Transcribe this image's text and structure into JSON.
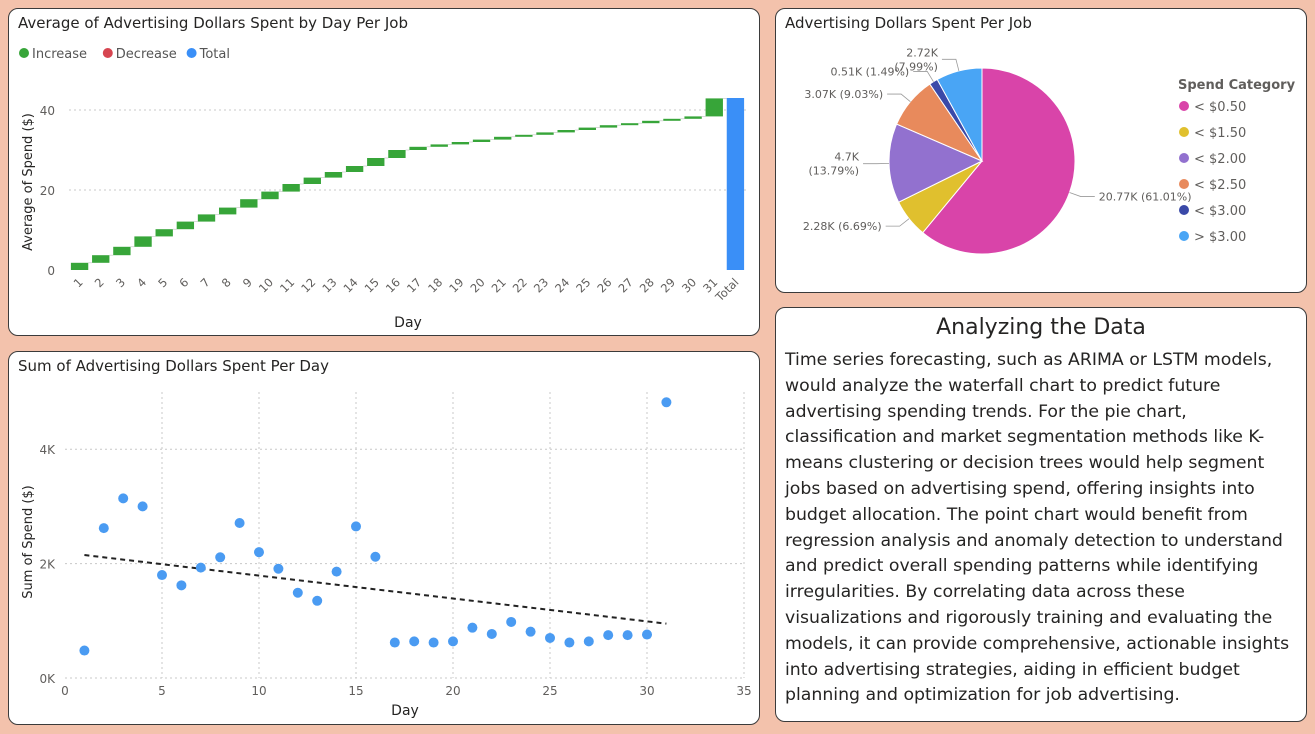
{
  "waterfall": {
    "title": "Average of Advertising Dollars Spent by Day Per Job",
    "legend": [
      {
        "label": "Increase",
        "color": "#37a539"
      },
      {
        "label": "Decrease",
        "color": "#d64550"
      },
      {
        "label": "Total",
        "color": "#3a8ff7"
      }
    ],
    "chart_data": {
      "type": "bar",
      "subtype": "waterfall",
      "categories": [
        "1",
        "2",
        "3",
        "4",
        "5",
        "6",
        "7",
        "8",
        "9",
        "10",
        "11",
        "12",
        "13",
        "14",
        "15",
        "16",
        "17",
        "18",
        "19",
        "20",
        "21",
        "22",
        "23",
        "24",
        "25",
        "26",
        "27",
        "28",
        "29",
        "30",
        "31",
        "Total"
      ],
      "cumulative_end": [
        1.8,
        3.7,
        5.8,
        8.4,
        10.2,
        12.1,
        13.9,
        15.6,
        17.7,
        19.6,
        21.5,
        23.1,
        24.5,
        26.0,
        28.0,
        30.0,
        30.8,
        31.4,
        32.0,
        32.6,
        33.3,
        33.8,
        34.4,
        35.0,
        35.6,
        36.2,
        36.7,
        37.3,
        37.8,
        38.4,
        42.9
      ],
      "total": 43.0,
      "xlabel": "Day",
      "ylabel": "Average of Spend ($)",
      "ylim": [
        0,
        44
      ],
      "yticks": [
        "0",
        "20",
        "40"
      ],
      "grid": "horizontal-dotted",
      "legend_position": "top-left"
    }
  },
  "pie": {
    "title": "Advertising Dollars Spent Per Job",
    "legend_title": "Spend Category",
    "chart_data": {
      "type": "pie",
      "slices": [
        {
          "category": "< $0.50",
          "value": 20.77,
          "label": "20.77K (61.01%)",
          "color": "#d944a9"
        },
        {
          "category": "< $1.50",
          "value": 2.28,
          "label": "2.28K (6.69%)",
          "color": "#e0c02e"
        },
        {
          "category": "< $2.00",
          "value": 4.7,
          "label": "4.7K\n(13.79%)",
          "color": "#9271cf"
        },
        {
          "category": "< $2.50",
          "value": 3.07,
          "label": "3.07K (9.03%)",
          "color": "#e88a5c"
        },
        {
          "category": "< $3.00",
          "value": 0.51,
          "label": "0.51K (1.49%)",
          "color": "#3a49a8"
        },
        {
          "category": "> $3.00",
          "value": 2.72,
          "label": "2.72K\n(7.99%)",
          "color": "#49a5f5"
        }
      ],
      "legend_position": "right"
    }
  },
  "scatter": {
    "title": "Sum of Advertising Dollars Spent Per Day",
    "chart_data": {
      "type": "scatter",
      "x": [
        1,
        2,
        3,
        4,
        5,
        6,
        7,
        8,
        9,
        10,
        11,
        12,
        13,
        14,
        15,
        16,
        17,
        18,
        19,
        20,
        21,
        22,
        23,
        24,
        25,
        26,
        27,
        28,
        29,
        30,
        31
      ],
      "y": [
        480,
        2620,
        3140,
        3000,
        1800,
        1620,
        1930,
        2110,
        2710,
        2200,
        1910,
        1490,
        1350,
        1860,
        2650,
        2120,
        620,
        640,
        620,
        640,
        880,
        770,
        980,
        810,
        700,
        620,
        640,
        750,
        750,
        760,
        4820
      ],
      "trendline": {
        "x": [
          1,
          31
        ],
        "y": [
          2150,
          950
        ],
        "style": "dashed"
      },
      "xlabel": "Day",
      "ylabel": "Sum of Spend ($)",
      "xlim": [
        0,
        35
      ],
      "ylim": [
        0,
        5000
      ],
      "xticks": [
        0,
        5,
        10,
        15,
        20,
        25,
        30,
        35
      ],
      "yticks": [
        {
          "v": 0,
          "label": "0K"
        },
        {
          "v": 2000,
          "label": "2K"
        },
        {
          "v": 4000,
          "label": "4K"
        }
      ],
      "point_color": "#4a9bf2",
      "grid": "dotted"
    }
  },
  "analysis": {
    "heading": "Analyzing the Data",
    "body": "Time series forecasting, such as ARIMA or LSTM models, would analyze the waterfall chart to predict future advertising spending trends. For the pie chart, classification and market segmentation methods like K-means clustering or decision trees would help segment jobs based on advertising spend, offering insights into budget allocation. The point chart would benefit from regression analysis and anomaly detection to understand and predict overall spending patterns while identifying irregularities. By correlating data across these visualizations and rigorously training and evaluating the models, it can provide comprehensive, actionable insights into advertising strategies, aiding in efficient budget planning and optimization for job advertising."
  }
}
